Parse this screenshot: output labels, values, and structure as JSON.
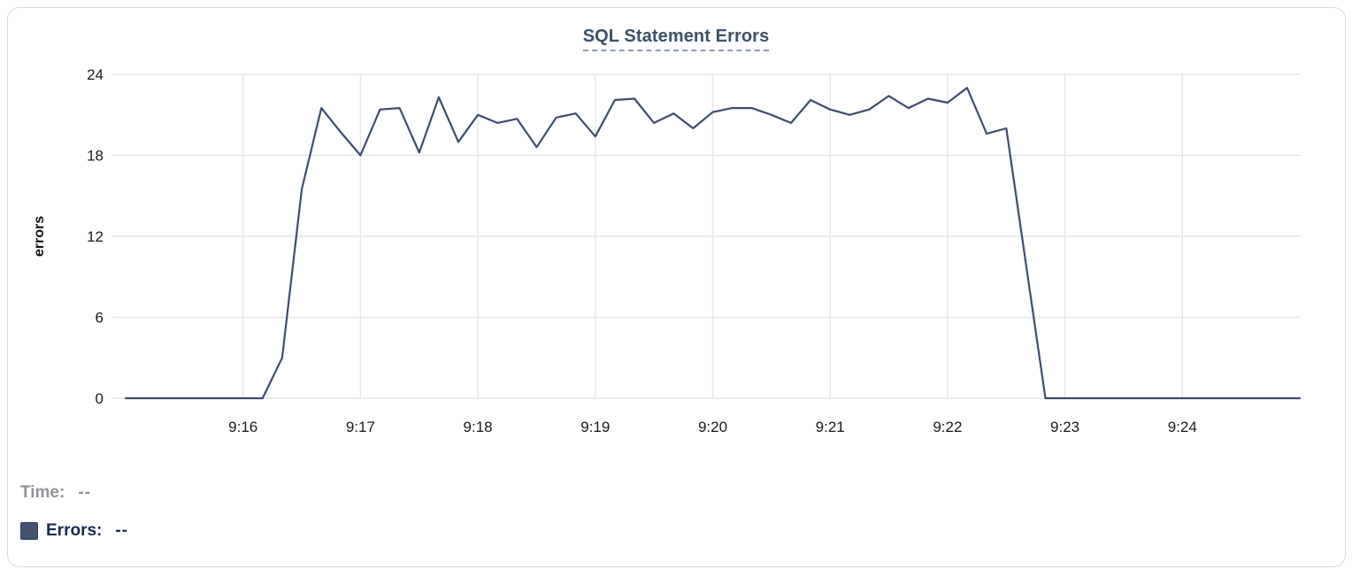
{
  "chart": {
    "title": "SQL Statement Errors"
  },
  "chart_data": {
    "type": "line",
    "title": "SQL Statement Errors",
    "xlabel": "",
    "ylabel": "errors",
    "ylim": [
      0,
      24
    ],
    "y_ticks": [
      0,
      6,
      12,
      18,
      24
    ],
    "grid": true,
    "legend_position": "bottom-left",
    "x_ticks": [
      {
        "label": "9:16",
        "sec": 60
      },
      {
        "label": "9:17",
        "sec": 120
      },
      {
        "label": "9:18",
        "sec": 180
      },
      {
        "label": "9:19",
        "sec": 240
      },
      {
        "label": "9:20",
        "sec": 300
      },
      {
        "label": "9:21",
        "sec": 360
      },
      {
        "label": "9:22",
        "sec": 420
      },
      {
        "label": "9:23",
        "sec": 480
      },
      {
        "label": "9:24",
        "sec": 540
      }
    ],
    "series": [
      {
        "name": "Errors",
        "color": "#3d4d6b",
        "start_time": "9:15:00",
        "end_time": "9:25:00",
        "interval_sec": 10,
        "values": [
          0,
          0,
          0,
          0,
          0,
          0,
          0,
          0,
          3,
          15.5,
          21.5,
          19.7,
          18,
          21.4,
          21.5,
          18.2,
          22.3,
          19,
          21,
          20.4,
          20.7,
          18.6,
          20.8,
          21.1,
          19.4,
          22.1,
          22.2,
          20.4,
          21.1,
          20,
          21.2,
          21.5,
          21.5,
          21,
          20.4,
          22.1,
          21.4,
          21,
          21.4,
          22.4,
          21.5,
          22.2,
          21.9,
          23,
          19.6,
          20,
          10,
          0,
          0,
          0,
          0,
          0,
          0,
          0,
          0,
          0,
          0,
          0,
          0,
          0,
          0
        ]
      }
    ]
  },
  "legend": {
    "time_label": "Time:",
    "time_value": "--",
    "errors_label": "Errors:",
    "errors_value": "--",
    "swatch_color": "#42526f"
  },
  "colors": {
    "line": "#3d4d6b",
    "title": "#3d5068",
    "title_underline": "#8e9bb3",
    "grid": "#e6e6e6",
    "axis_text": "#1a1a1a",
    "legend_time_text": "#909297",
    "legend_errors_text": "#1a2950",
    "card_border": "#d9d9d9"
  }
}
